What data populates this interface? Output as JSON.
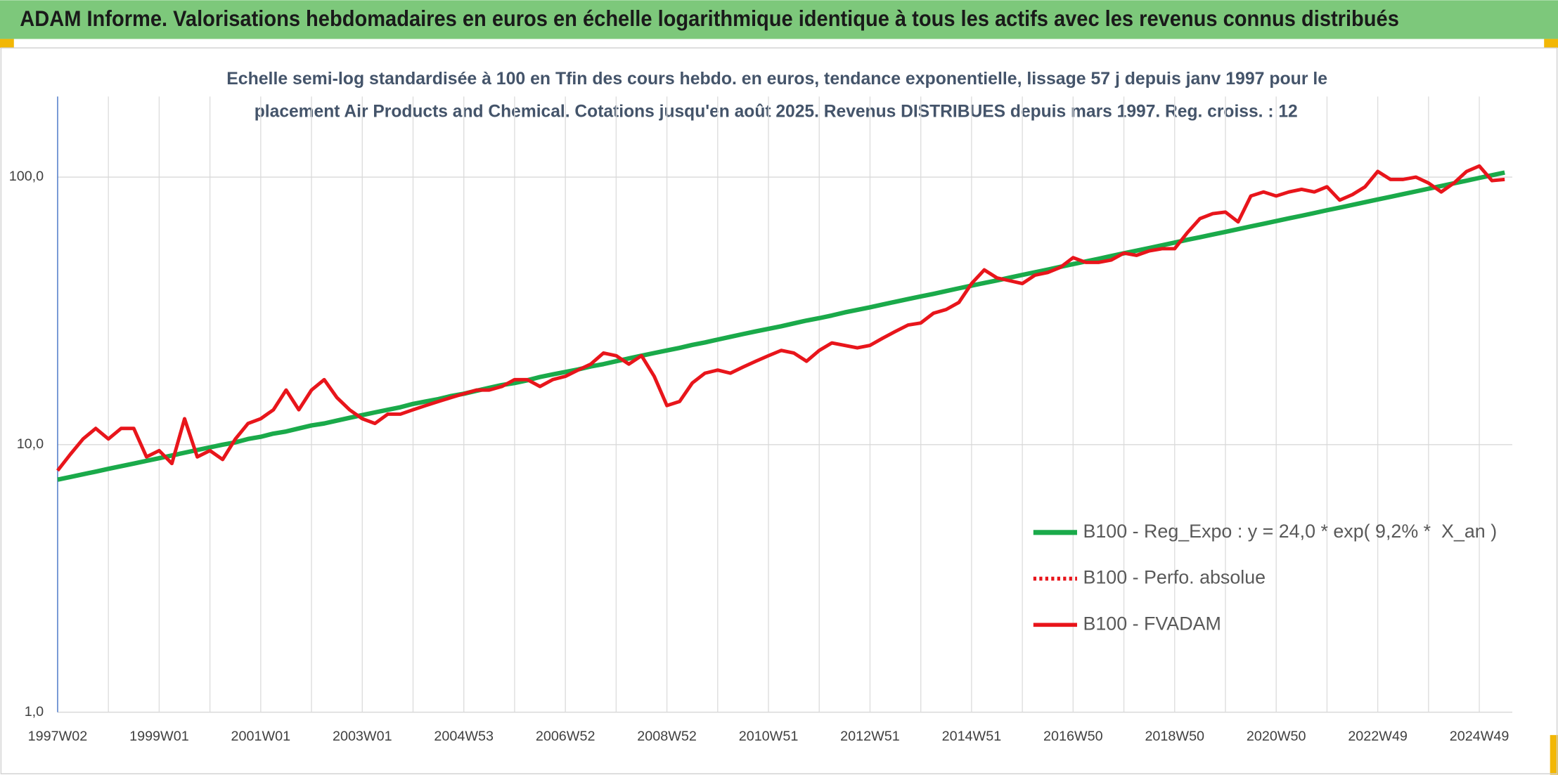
{
  "chart_data": {
    "type": "line",
    "title": "ADAM Informe. Valorisations hebdomadaires en euros en échelle logarithmique identique à tous les actifs avec les revenus connus distribués",
    "subtitle": [
      "Echelle semi-log standardisée à 100 en Tfin des cours hebdo. en euros, tendance exponentielle, lissage 57 j depuis janv 1997 pour le",
      "placement Air Products and Chemical. Cotations jusqu'en août 2025. Revenus DISTRIBUES depuis mars 1997. Reg. croiss. : 12"
    ],
    "log_scale": true,
    "ylim": [
      1,
      200
    ],
    "yticks": [
      {
        "value": 1,
        "label": "1,0"
      },
      {
        "value": 10,
        "label": "10,0"
      },
      {
        "value": 100,
        "label": "100,0"
      }
    ],
    "grid": true,
    "legend": "right",
    "categories": [
      "1997W02",
      null,
      null,
      null,
      null,
      null,
      null,
      null,
      "1999W01",
      null,
      null,
      null,
      null,
      null,
      null,
      null,
      "2001W01",
      null,
      null,
      null,
      null,
      null,
      null,
      null,
      "2003W01",
      null,
      null,
      null,
      null,
      null,
      null,
      null,
      "2004W53",
      null,
      null,
      null,
      null,
      null,
      null,
      null,
      "2006W52",
      null,
      null,
      null,
      null,
      null,
      null,
      null,
      "2008W52",
      null,
      null,
      null,
      null,
      null,
      null,
      null,
      "2010W51",
      null,
      null,
      null,
      null,
      null,
      null,
      null,
      "2012W51",
      null,
      null,
      null,
      null,
      null,
      null,
      null,
      "2014W51",
      null,
      null,
      null,
      null,
      null,
      null,
      null,
      "2016W50",
      null,
      null,
      null,
      null,
      null,
      null,
      null,
      "2018W50",
      null,
      null,
      null,
      null,
      null,
      null,
      null,
      "2020W50",
      null,
      null,
      null,
      null,
      null,
      null,
      null,
      "2022W49",
      null,
      null,
      null,
      null,
      null,
      null,
      null,
      "2024W49",
      null,
      null
    ],
    "series": [
      {
        "name": "B100 - Reg_Expo : y = 24,0 * exp( 9,2% *  X_an )",
        "color": "#1aaa4a",
        "style": "solid",
        "values": [
          7.4,
          7.57,
          7.75,
          7.93,
          8.12,
          8.31,
          8.5,
          8.7,
          8.9,
          9.11,
          9.33,
          9.55,
          9.77,
          10.0,
          10.2,
          10.5,
          10.7,
          11.0,
          11.2,
          11.5,
          11.8,
          12.0,
          12.3,
          12.6,
          12.9,
          13.2,
          13.5,
          13.8,
          14.2,
          14.5,
          14.8,
          15.2,
          15.5,
          15.9,
          16.3,
          16.7,
          17.0,
          17.4,
          17.9,
          18.3,
          18.7,
          19.1,
          19.6,
          20.0,
          20.5,
          21.0,
          21.5,
          22.0,
          22.5,
          23.0,
          23.6,
          24.1,
          24.7,
          25.3,
          25.9,
          26.5,
          27.1,
          27.7,
          28.4,
          29.1,
          29.7,
          30.4,
          31.2,
          31.9,
          32.6,
          33.4,
          34.2,
          35.0,
          35.8,
          36.6,
          37.5,
          38.4,
          39.3,
          40.2,
          41.1,
          42.1,
          43.1,
          44.1,
          45.1,
          46.2,
          47.3,
          48.4,
          49.5,
          50.7,
          51.9,
          53.1,
          54.3,
          55.6,
          56.9,
          58.3,
          59.6,
          61.0,
          62.4,
          63.9,
          65.4,
          66.9,
          68.5,
          70.1,
          71.7,
          73.4,
          75.2,
          76.9,
          78.7,
          80.6,
          82.5,
          84.4,
          86.4,
          88.4,
          90.5,
          92.6,
          94.8,
          97.0,
          99.3,
          101.6,
          104.0
        ]
      },
      {
        "name": "B100 - Perfo. absolue",
        "color": "#e8151b",
        "style": "dotted"
      },
      {
        "name": "B100 - FVADAM",
        "color": "#e8151b",
        "style": "solid",
        "values": [
          8.0,
          9.2,
          10.5,
          11.5,
          10.5,
          11.5,
          11.5,
          9.0,
          9.5,
          8.5,
          12.5,
          9.0,
          9.5,
          8.8,
          10.5,
          12.0,
          12.5,
          13.5,
          16.0,
          13.5,
          16.0,
          17.5,
          15.0,
          13.5,
          12.5,
          12.0,
          13.0,
          13.0,
          13.5,
          14.0,
          14.5,
          15.0,
          15.5,
          16.0,
          16.0,
          16.5,
          17.5,
          17.5,
          16.5,
          17.5,
          18.0,
          19.0,
          20.0,
          22.0,
          21.5,
          20.0,
          21.5,
          18.0,
          14.0,
          14.5,
          17.0,
          18.5,
          19.0,
          18.5,
          19.5,
          20.5,
          21.5,
          22.5,
          22.0,
          20.5,
          22.5,
          24.0,
          23.5,
          23.0,
          23.5,
          25.0,
          26.5,
          28.0,
          28.5,
          31.0,
          32.0,
          34.0,
          40.0,
          45.0,
          42.0,
          41.0,
          40.0,
          43.0,
          44.0,
          46.0,
          50.0,
          48.0,
          48.0,
          49.0,
          52.0,
          51.0,
          53.0,
          54.0,
          54.0,
          62.0,
          70.0,
          73.0,
          74.0,
          68.0,
          85.0,
          88.0,
          85.0,
          88.0,
          90.0,
          88.0,
          92.0,
          82.0,
          86.0,
          92.0,
          105.0,
          98.0,
          98.0,
          100.0,
          95.0,
          88.0,
          95.0,
          105.0,
          110.0,
          97.0,
          98.0
        ]
      }
    ]
  }
}
